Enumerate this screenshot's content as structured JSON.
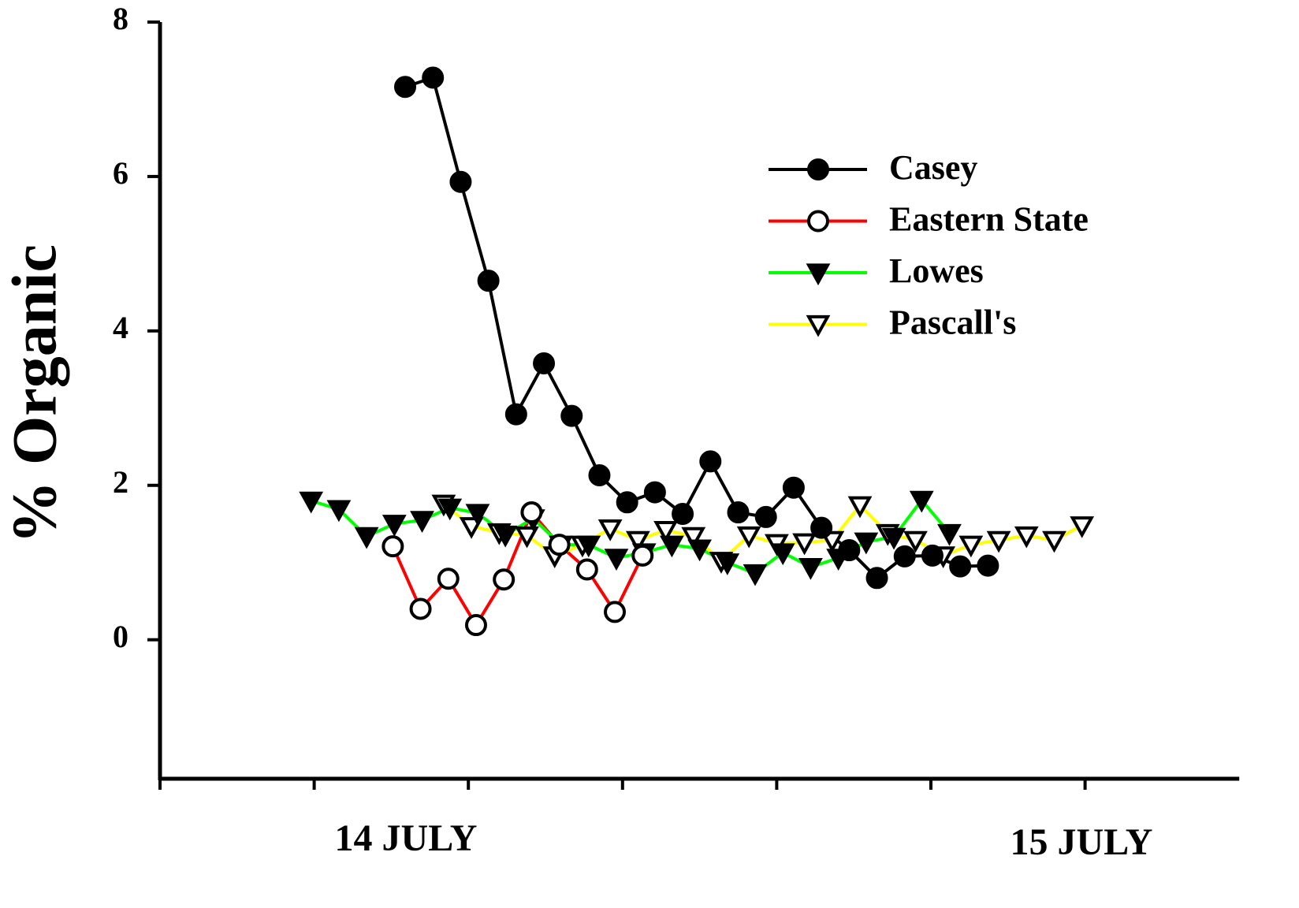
{
  "chart_data": {
    "type": "line",
    "y_label": "% Organic",
    "annotations": [
      "14 JULY",
      "15 JULY"
    ],
    "xlim": [
      0,
      7
    ],
    "xticks": [
      0,
      1,
      2,
      3,
      4,
      5,
      6
    ],
    "ylim": [
      -1.8,
      8
    ],
    "yticks": [
      0,
      2,
      4,
      6,
      8
    ],
    "legend": "upper right",
    "series": [
      {
        "name": "Casey",
        "color": "#000000",
        "marker": "circle",
        "filled": true,
        "x": [
          1.59,
          1.77,
          1.95,
          2.13,
          2.31,
          2.49,
          2.67,
          2.85,
          3.03,
          3.21,
          3.39,
          3.57,
          3.75,
          3.93,
          4.11,
          4.29,
          4.47,
          4.65,
          4.83,
          5.01,
          5.19,
          5.37
        ],
        "values": [
          7.16,
          7.28,
          5.93,
          4.65,
          2.92,
          3.58,
          2.9,
          2.13,
          1.78,
          1.91,
          1.63,
          2.31,
          1.65,
          1.59,
          1.97,
          1.45,
          1.16,
          0.8,
          1.08,
          1.09,
          0.95,
          0.96
        ]
      },
      {
        "name": "Eastern State",
        "color": "#ff0000",
        "marker": "circle",
        "filled": false,
        "x": [
          1.51,
          1.69,
          1.87,
          2.05,
          2.23,
          2.41,
          2.59,
          2.77,
          2.95,
          3.13
        ],
        "values": [
          1.21,
          0.4,
          0.79,
          0.19,
          0.78,
          1.65,
          1.23,
          0.91,
          0.36,
          1.09
        ]
      },
      {
        "name": "Lowes",
        "color": "#00ff00",
        "marker": "triangle-down",
        "filled": true,
        "x": [
          0.98,
          1.16,
          1.34,
          1.52,
          1.7,
          1.88,
          2.06,
          2.24,
          2.42,
          2.6,
          2.78,
          2.96,
          3.14,
          3.32,
          3.5,
          3.68,
          3.86,
          4.04,
          4.22,
          4.4,
          4.58,
          4.76,
          4.94,
          5.12
        ],
        "values": [
          1.8,
          1.69,
          1.34,
          1.5,
          1.55,
          1.71,
          1.64,
          1.36,
          1.57,
          1.23,
          1.23,
          1.06,
          1.13,
          1.23,
          1.18,
          1.0,
          0.86,
          1.13,
          0.94,
          1.06,
          1.27,
          1.33,
          1.81,
          1.38
        ]
      },
      {
        "name": "Pascall's",
        "color": "#ffff00",
        "marker": "triangle-down",
        "filled": false,
        "x": [
          1.84,
          2.02,
          2.2,
          2.38,
          2.56,
          2.74,
          2.92,
          3.1,
          3.28,
          3.46,
          3.64,
          3.82,
          4.0,
          4.18,
          4.36,
          4.54,
          4.72,
          4.9,
          5.08,
          5.26,
          5.44,
          5.62,
          5.8,
          5.98
        ],
        "values": [
          1.76,
          1.47,
          1.39,
          1.35,
          1.09,
          1.23,
          1.44,
          1.29,
          1.42,
          1.34,
          1.02,
          1.35,
          1.25,
          1.26,
          1.29,
          1.74,
          1.38,
          1.29,
          1.09,
          1.23,
          1.29,
          1.35,
          1.29,
          1.48
        ]
      }
    ]
  }
}
